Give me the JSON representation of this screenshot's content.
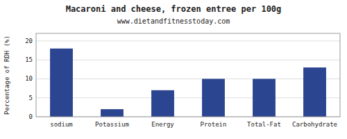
{
  "chart_data": {
    "type": "bar",
    "title": "Macaroni and cheese, frozen entree per 100g",
    "subtitle": "www.dietandfitnesstoday.com",
    "categories": [
      "sodium",
      "Potassium",
      "Energy",
      "Protein",
      "Total-Fat",
      "Carbohydrate"
    ],
    "values": [
      18,
      2,
      7,
      10,
      10,
      13
    ],
    "color": "#2b4590",
    "ylabel": "Percentage of RDH (%)",
    "ylim": [
      0,
      22
    ],
    "yticks": [
      0,
      5,
      10,
      15,
      20
    ],
    "grid": true
  }
}
